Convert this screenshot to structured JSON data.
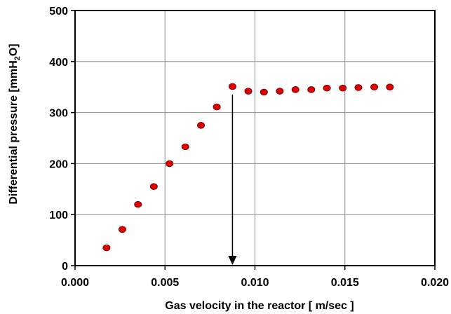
{
  "chart_data": {
    "type": "scatter",
    "title": "",
    "xlabel": "Gas velocity in the reactor [ m/sec ]",
    "ylabel": {
      "main": "Differential pressure [mmH",
      "sub": "2",
      "tail": "O]"
    },
    "xlim": [
      0.0,
      0.02
    ],
    "ylim": [
      0,
      500
    ],
    "x_ticks": [
      0.0,
      0.005,
      0.01,
      0.015,
      0.02
    ],
    "x_tick_labels": [
      "0.000",
      "0.005",
      "0.010",
      "0.015",
      "0.020"
    ],
    "y_ticks": [
      0,
      100,
      200,
      300,
      400,
      500
    ],
    "y_tick_labels": [
      "0",
      "100",
      "200",
      "300",
      "400",
      "500"
    ],
    "grid": true,
    "legend": "none",
    "marker_color": "#e00000",
    "marker_edge_color": "#7a0000",
    "points": [
      {
        "x": 0.00175,
        "y": 35
      },
      {
        "x": 0.00263,
        "y": 71
      },
      {
        "x": 0.0035,
        "y": 120
      },
      {
        "x": 0.00438,
        "y": 155
      },
      {
        "x": 0.00525,
        "y": 200
      },
      {
        "x": 0.00613,
        "y": 233
      },
      {
        "x": 0.007,
        "y": 275
      },
      {
        "x": 0.00788,
        "y": 311
      },
      {
        "x": 0.00875,
        "y": 351
      },
      {
        "x": 0.00963,
        "y": 342
      },
      {
        "x": 0.0105,
        "y": 340
      },
      {
        "x": 0.01138,
        "y": 342
      },
      {
        "x": 0.01225,
        "y": 345
      },
      {
        "x": 0.01313,
        "y": 345
      },
      {
        "x": 0.014,
        "y": 348
      },
      {
        "x": 0.01488,
        "y": 348
      },
      {
        "x": 0.01575,
        "y": 349
      },
      {
        "x": 0.01663,
        "y": 350
      },
      {
        "x": 0.0175,
        "y": 350
      }
    ],
    "annotation_arrow": {
      "x": 0.00875,
      "y_from": 335,
      "y_to": 0
    }
  }
}
